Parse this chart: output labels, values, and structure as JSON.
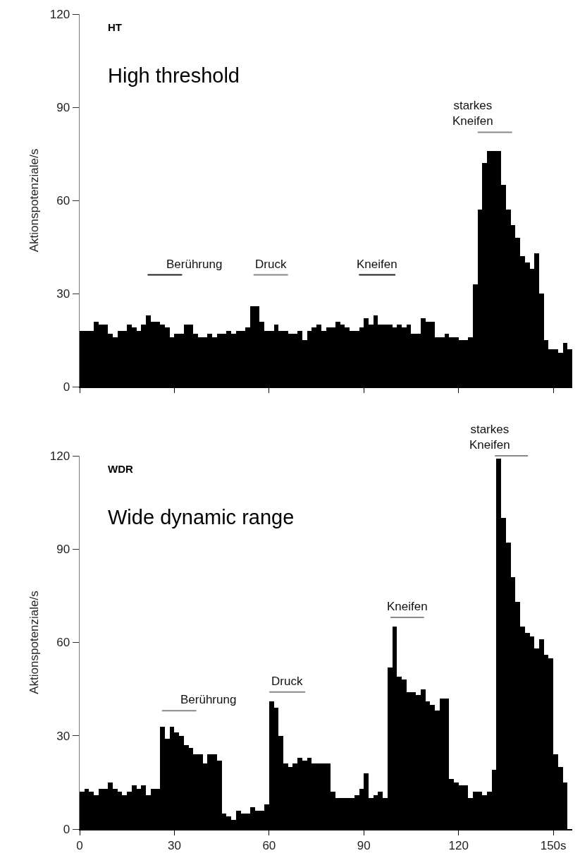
{
  "chart_data": [
    {
      "type": "histogram",
      "ylabel": "Aktionspotenziale/s",
      "bins": [
        0,
        1.5,
        3,
        4.5,
        6,
        7.5,
        9,
        10.5,
        12,
        13.5,
        15,
        16.5,
        18,
        19.5,
        21,
        22.5,
        24,
        25.5,
        27,
        28.5,
        30,
        31.5,
        33,
        34.5,
        36,
        37.5,
        39,
        40.5,
        42,
        43.5,
        45,
        46.5,
        48,
        49.5,
        51,
        52.5,
        54,
        55.5,
        57,
        58.5,
        60,
        61.5,
        63,
        64.5,
        66,
        67.5,
        69,
        70.5,
        72,
        73.5,
        75,
        76.5,
        78,
        79.5,
        81,
        82.5,
        84,
        85.5,
        87,
        88.5,
        90,
        91.5,
        93,
        94.5,
        96,
        97.5,
        99,
        100.5,
        102,
        103.5,
        105,
        106.5,
        108,
        109.5,
        111,
        112.5,
        114,
        115.5,
        117,
        118.5,
        120,
        121.5,
        123,
        124.5,
        126,
        127.5,
        129,
        130.5,
        132,
        133.5,
        135,
        136.5,
        138,
        139.5,
        141,
        142.5,
        144,
        145.5,
        147,
        148.5,
        150,
        151.5,
        153,
        154.5,
        156
      ],
      "values": [
        18,
        18,
        18,
        21,
        20,
        20,
        17,
        16,
        18,
        18,
        20,
        19,
        18,
        20,
        23,
        21,
        21,
        20,
        19,
        16,
        17,
        17,
        20,
        20,
        17,
        16,
        16,
        17,
        16,
        17,
        17,
        18,
        17,
        18,
        18,
        19,
        26,
        26,
        21,
        18,
        18,
        20,
        18,
        18,
        17,
        17,
        18,
        15,
        18,
        19,
        20,
        18,
        19,
        19,
        21,
        20,
        19,
        18,
        18,
        19,
        22,
        20,
        23,
        20,
        20,
        20,
        19,
        20,
        19,
        20,
        17,
        17,
        22,
        21,
        21,
        16,
        16,
        17,
        16,
        16,
        15,
        15,
        16,
        33,
        57,
        72,
        76,
        76,
        76,
        65,
        57,
        52,
        48,
        42,
        40,
        38,
        43,
        30,
        15,
        12,
        12,
        11,
        14,
        12
      ],
      "color": "#000000",
      "xlim": [
        0,
        156
      ],
      "xticks": [
        0,
        30,
        60,
        90,
        120,
        150
      ],
      "ylim": [
        0,
        120
      ],
      "yticks": [
        0,
        30,
        60,
        90,
        120
      ],
      "tick_labels": "y",
      "annotations": [
        "HT",
        "High threshold",
        "Berührung",
        "Druck",
        "Kneifen",
        "starkes\nKneifen"
      ]
    },
    {
      "type": "histogram",
      "ylabel": "Aktionspotenziale/s",
      "bins": [
        0,
        1.5,
        3,
        4.5,
        6,
        7.5,
        9,
        10.5,
        12,
        13.5,
        15,
        16.5,
        18,
        19.5,
        21,
        22.5,
        24,
        25.5,
        27,
        28.5,
        30,
        31.5,
        33,
        34.5,
        36,
        37.5,
        39,
        40.5,
        42,
        43.5,
        45,
        46.5,
        48,
        49.5,
        51,
        52.5,
        54,
        55.5,
        57,
        58.5,
        60,
        61.5,
        63,
        64.5,
        66,
        67.5,
        69,
        70.5,
        72,
        73.5,
        75,
        76.5,
        78,
        79.5,
        81,
        82.5,
        84,
        85.5,
        87,
        88.5,
        90,
        91.5,
        93,
        94.5,
        96,
        97.5,
        99,
        100.5,
        102,
        103.5,
        105,
        106.5,
        108,
        109.5,
        111,
        112.5,
        114,
        115.5,
        117,
        118.5,
        120,
        121.5,
        123,
        124.5,
        126,
        127.5,
        129,
        130.5,
        132,
        133.5,
        135,
        136.5,
        138,
        139.5,
        141,
        142.5,
        144,
        145.5,
        147,
        148.5,
        150,
        151.5,
        153,
        154.5
      ],
      "values": [
        12,
        13,
        12,
        11,
        13,
        13,
        15,
        13,
        12,
        11,
        12,
        14,
        13,
        14,
        11,
        13,
        13,
        33,
        29,
        33,
        31,
        30,
        27,
        26,
        24,
        24,
        21,
        24,
        24,
        22,
        5,
        4,
        3,
        6,
        5,
        5,
        7,
        6,
        6,
        8,
        41,
        39,
        30,
        21,
        20,
        21,
        23,
        22,
        23,
        21,
        21,
        21,
        21,
        12,
        10,
        10,
        10,
        10,
        11,
        13,
        18,
        10,
        11,
        12,
        10,
        52,
        65,
        49,
        48,
        44,
        44,
        43,
        45,
        41,
        40,
        38,
        42,
        42,
        16,
        15,
        14,
        14,
        10,
        12,
        12,
        11,
        12,
        19,
        119,
        100,
        92,
        81,
        73,
        65,
        63,
        62,
        58,
        61,
        56,
        55,
        24,
        20,
        15
      ],
      "color": "#000000",
      "xlim": [
        0,
        156
      ],
      "xticks": [
        0,
        30,
        60,
        90,
        120,
        {
          "value": 150,
          "label": "150s"
        }
      ],
      "ylim": [
        0,
        120
      ],
      "yticks": [
        0,
        30,
        60,
        90,
        120
      ],
      "annotations": [
        "WDR",
        "Wide dynamic range",
        "Berührung",
        "Druck",
        "Kneifen",
        "starkes\nKneifen"
      ]
    }
  ]
}
